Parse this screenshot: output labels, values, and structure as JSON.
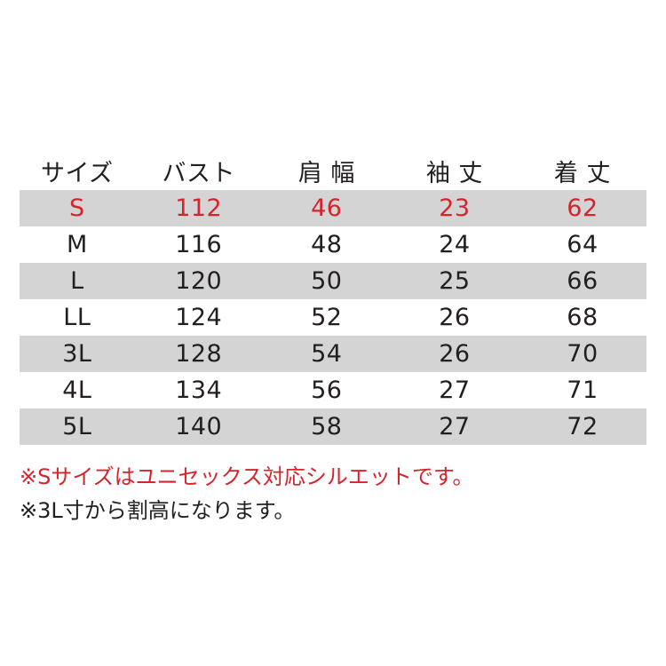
{
  "table": {
    "headers": [
      "サイズ",
      "バスト",
      "肩 幅",
      "袖 丈",
      "着 丈"
    ],
    "rows": [
      [
        "S",
        "112",
        "46",
        "23",
        "62"
      ],
      [
        "M",
        "116",
        "48",
        "24",
        "64"
      ],
      [
        "L",
        "120",
        "50",
        "25",
        "66"
      ],
      [
        "LL",
        "124",
        "52",
        "26",
        "68"
      ],
      [
        "3L",
        "128",
        "54",
        "26",
        "70"
      ],
      [
        "4L",
        "134",
        "56",
        "27",
        "71"
      ],
      [
        "5L",
        "140",
        "58",
        "27",
        "72"
      ]
    ],
    "highlight_color": "#d4242c",
    "stripe_color": "#d4d4d4"
  },
  "notes": [
    "※Sサイズはユニセックス対応シルエットです。",
    "※3L寸から割高になります。"
  ]
}
